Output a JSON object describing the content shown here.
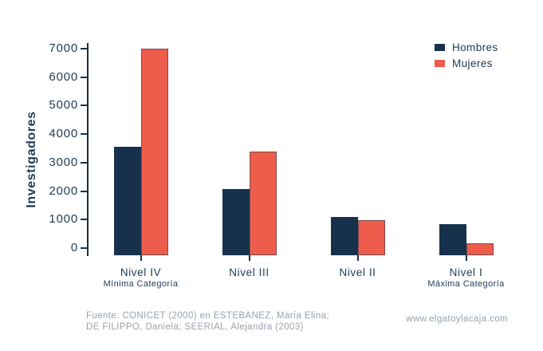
{
  "chart_data": {
    "type": "bar",
    "title": "",
    "ylabel": "Investigadores",
    "xlabel": "",
    "ylim": [
      0,
      7000
    ],
    "yticks": [
      0,
      1000,
      2000,
      3000,
      4000,
      5000,
      6000,
      7000
    ],
    "grid": false,
    "legend_position": "top-right",
    "categories": [
      {
        "label": "Nivel IV",
        "sublabel": "Mínima Categoría"
      },
      {
        "label": "Nivel III",
        "sublabel": ""
      },
      {
        "label": "Nivel II",
        "sublabel": ""
      },
      {
        "label": "Nivel I",
        "sublabel": "Máxima Categoría"
      }
    ],
    "series": [
      {
        "name": "Hombres",
        "color": "#17314C",
        "values": [
          3700,
          2250,
          1300,
          1050
        ]
      },
      {
        "name": "Mujeres",
        "color": "#EE5C4B",
        "values": [
          7050,
          3550,
          1200,
          400
        ]
      }
    ]
  },
  "colors": {
    "navy": "#17314C",
    "salmon": "#EE5C4B",
    "text_navy": "#1E3A56",
    "footer_gray": "#97A3AF"
  },
  "footer": {
    "source_line1": "Fuente: CONICET (2000) en ESTEBANEZ, María Elina;",
    "source_line2": "DE FILIPPO, Daniela; SEERIAL, Alejandra (2003)",
    "website": "www.elgatoylacaja.com"
  }
}
